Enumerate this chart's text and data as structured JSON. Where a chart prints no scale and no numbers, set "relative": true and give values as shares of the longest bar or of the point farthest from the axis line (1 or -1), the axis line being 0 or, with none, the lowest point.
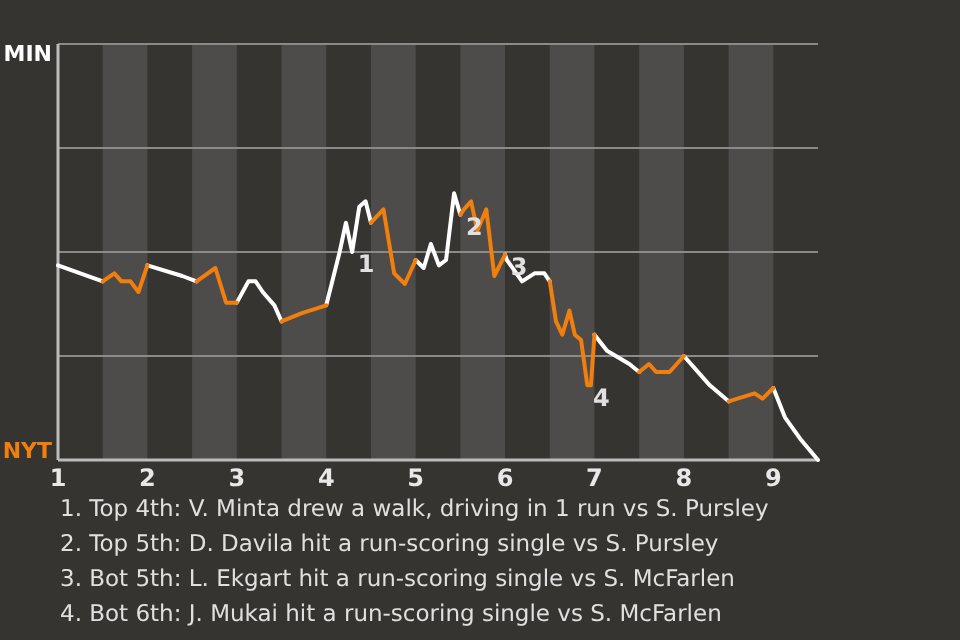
{
  "chart_data": {
    "type": "line",
    "relative": true,
    "x": [
      1,
      1.5,
      1.63,
      1.71,
      1.81,
      1.9,
      2,
      2.39,
      2.55,
      2.76,
      2.88,
      3,
      3.13,
      3.21,
      3.29,
      3.42,
      3.5,
      3.72,
      4,
      4.06,
      4.15,
      4.22,
      4.29,
      4.37,
      4.44,
      4.5,
      4.64,
      4.76,
      4.88,
      5,
      5.09,
      5.17,
      5.26,
      5.34,
      5.43,
      5.5,
      5.54,
      5.62,
      5.69,
      5.79,
      5.88,
      6,
      6.02,
      6.19,
      6.33,
      6.44,
      6.5,
      6.57,
      6.64,
      6.72,
      6.78,
      6.85,
      6.92,
      6.96,
      7,
      7.14,
      7.39,
      7.5,
      7.61,
      7.69,
      7.84,
      8,
      8.29,
      8.5,
      8.79,
      8.88,
      9,
      9.13,
      9.3,
      9.5
    ],
    "series": [
      {
        "color": "#ffffff",
        "values": [
          0.73,
          0.67,
          null,
          null,
          null,
          null,
          0.73,
          0.69,
          0.67,
          null,
          null,
          0.59,
          0.67,
          0.67,
          0.63,
          0.58,
          0.52,
          null,
          0.58,
          0.66,
          0.78,
          0.89,
          0.78,
          0.95,
          0.97,
          0.89,
          null,
          null,
          null,
          0.75,
          0.72,
          0.81,
          0.73,
          0.75,
          1,
          0.92,
          null,
          null,
          null,
          null,
          null,
          0.77,
          0.75,
          0.67,
          0.7,
          0.7,
          0.67,
          null,
          null,
          null,
          null,
          null,
          null,
          null,
          0.47,
          0.41,
          0.36,
          0.33,
          null,
          null,
          null,
          0.39,
          0.28,
          0.22,
          null,
          null,
          0.27,
          0.16,
          0.08,
          0
        ]
      },
      {
        "color": "#f07f0e",
        "values": [
          null,
          0.67,
          0.7,
          0.67,
          0.67,
          0.63,
          0.73,
          null,
          0.67,
          0.72,
          0.59,
          0.59,
          null,
          null,
          null,
          null,
          0.52,
          0.55,
          0.58,
          null,
          null,
          null,
          null,
          null,
          null,
          0.89,
          0.94,
          0.7,
          0.66,
          0.75,
          null,
          null,
          null,
          null,
          null,
          0.92,
          0.94,
          0.97,
          0.86,
          0.94,
          0.69,
          0.77,
          null,
          null,
          null,
          null,
          0.67,
          0.52,
          0.47,
          0.56,
          0.47,
          0.45,
          0.28,
          0.28,
          0.47,
          null,
          null,
          0.33,
          0.36,
          0.33,
          0.33,
          0.39,
          null,
          0.22,
          0.25,
          0.23,
          0.27,
          null,
          null,
          null
        ]
      }
    ],
    "xlim": [
      1,
      9.5
    ],
    "xticks": [
      1,
      2,
      3,
      4,
      5,
      6,
      7,
      8,
      9
    ],
    "ref_lines": [
      {
        "axis": "y",
        "value": 0.39,
        "color": "#8a8a88"
      },
      {
        "axis": "y",
        "value": 0.78,
        "color": "#8a8a88"
      },
      {
        "axis": "y",
        "value": 1.17,
        "color": "#8a8a88"
      },
      {
        "axis": "y",
        "value": 1.56,
        "color": "#8a8a88"
      }
    ],
    "bands": [
      {
        "axis": "x",
        "from": 1.5,
        "to": 2,
        "color": "#4d4c4a"
      },
      {
        "axis": "x",
        "from": 2.5,
        "to": 3,
        "color": "#4d4c4a"
      },
      {
        "axis": "x",
        "from": 3.5,
        "to": 4,
        "color": "#4d4c4a"
      },
      {
        "axis": "x",
        "from": 4.5,
        "to": 5,
        "color": "#4d4c4a"
      },
      {
        "axis": "x",
        "from": 5.5,
        "to": 6,
        "color": "#4d4c4a"
      },
      {
        "axis": "x",
        "from": 6.5,
        "to": 7,
        "color": "#4d4c4a"
      },
      {
        "axis": "x",
        "from": 7.5,
        "to": 8,
        "color": "#4d4c4a"
      },
      {
        "axis": "x",
        "from": 8.5,
        "to": 9,
        "color": "#4d4c4a"
      }
    ],
    "annotations": [
      "MIN",
      "NYT",
      {
        "text": "1",
        "x": 4.29,
        "y": 0.78
      },
      {
        "text": "2",
        "x": 5.5,
        "y": 0.92
      },
      {
        "text": "3",
        "x": 6,
        "y": 0.77
      },
      {
        "text": "4",
        "x": 6.92,
        "y": 0.28
      },
      "1. Top 4th: V. Minta drew a walk, driving in 1 run vs S. Pursley",
      "2. Top 5th: D. Davila hit a run-scoring single vs S. Pursley",
      "3. Bot 5th: L. Ekgart hit a run-scoring single vs S. McFarlen",
      "4. Bot 6th: J. Mukai hit a run-scoring single vs S. McFarlen"
    ]
  }
}
